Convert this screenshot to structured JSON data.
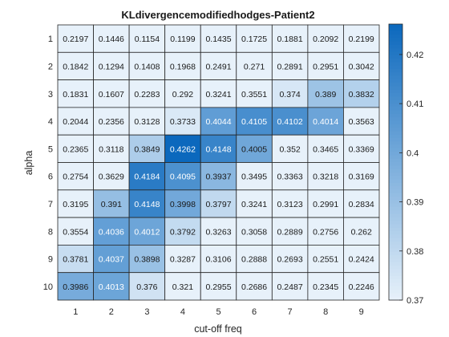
{
  "chart_data": {
    "type": "heatmap",
    "title": "KLdivergencemodifiedhodges-Patient2",
    "xlabel": "cut-off freq",
    "ylabel": "alpha",
    "x_categories": [
      "1",
      "2",
      "3",
      "4",
      "5",
      "6",
      "7",
      "8",
      "9"
    ],
    "y_categories": [
      "1",
      "2",
      "3",
      "4",
      "5",
      "6",
      "7",
      "8",
      "9",
      "10"
    ],
    "values": [
      [
        "0.2197",
        "0.1446",
        "0.1154",
        "0.1199",
        "0.1435",
        "0.1725",
        "0.1881",
        "0.2092",
        "0.2199"
      ],
      [
        "0.1842",
        "0.1294",
        "0.1408",
        "0.1968",
        "0.2491",
        "0.271",
        "0.2891",
        "0.2951",
        "0.3042"
      ],
      [
        "0.1831",
        "0.1607",
        "0.2283",
        "0.292",
        "0.3241",
        "0.3551",
        "0.374",
        "0.389",
        "0.3832"
      ],
      [
        "0.2044",
        "0.2356",
        "0.3128",
        "0.3733",
        "0.4044",
        "0.4105",
        "0.4102",
        "0.4014",
        "0.3563"
      ],
      [
        "0.2365",
        "0.3118",
        "0.3849",
        "0.4262",
        "0.4148",
        "0.4005",
        "0.352",
        "0.3465",
        "0.3369"
      ],
      [
        "0.2754",
        "0.3629",
        "0.4184",
        "0.4095",
        "0.3937",
        "0.3495",
        "0.3363",
        "0.3218",
        "0.3169"
      ],
      [
        "0.3195",
        "0.391",
        "0.4148",
        "0.3998",
        "0.3797",
        "0.3241",
        "0.3123",
        "0.2991",
        "0.2834"
      ],
      [
        "0.3554",
        "0.4036",
        "0.4012",
        "0.3792",
        "0.3263",
        "0.3058",
        "0.2889",
        "0.2756",
        "0.262"
      ],
      [
        "0.3781",
        "0.4037",
        "0.3898",
        "0.3287",
        "0.3106",
        "0.2888",
        "0.2693",
        "0.2551",
        "0.2424"
      ],
      [
        "0.3986",
        "0.4013",
        "0.376",
        "0.321",
        "0.2955",
        "0.2686",
        "0.2487",
        "0.2345",
        "0.2246"
      ]
    ],
    "color_limits": [
      0.37,
      0.4262
    ],
    "colormap": {
      "low": "#e7f1fa",
      "high": "#0b68bd"
    },
    "colorbar": {
      "position": "right",
      "ticks": [
        "0.37",
        "0.38",
        "0.39",
        "0.4",
        "0.41",
        "0.42"
      ]
    },
    "grid": true
  }
}
